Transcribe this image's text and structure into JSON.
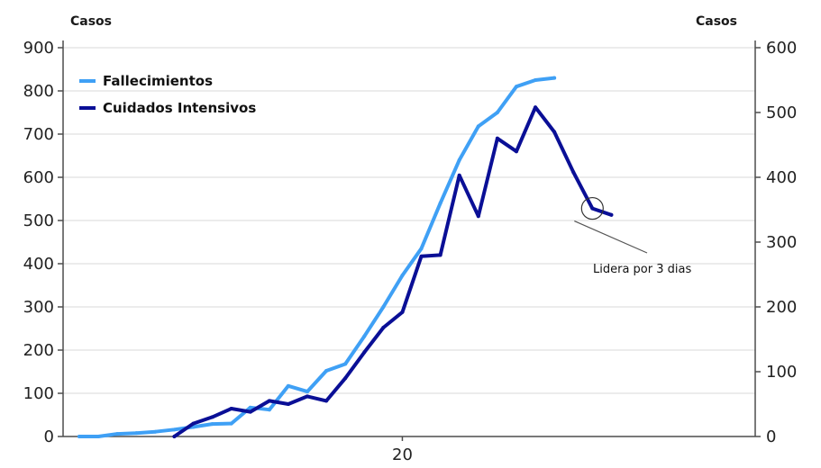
{
  "chart_data": {
    "type": "line",
    "x": [
      1,
      2,
      3,
      4,
      5,
      6,
      7,
      8,
      9,
      10,
      11,
      12,
      13,
      14,
      15,
      16,
      17,
      18,
      19,
      20,
      21,
      22,
      23,
      24,
      25,
      26,
      27,
      28,
      29,
      30,
      31,
      32,
      33,
      34,
      35,
      36
    ],
    "x_tick_labels": [
      {
        "x": 18,
        "label": "20"
      }
    ],
    "left_axis": {
      "title": "Casos",
      "ylim": [
        0,
        900
      ],
      "ticks": [
        0,
        100,
        200,
        300,
        400,
        500,
        600,
        700,
        800,
        900
      ]
    },
    "right_axis": {
      "title": "Casos",
      "ylim": [
        0,
        600
      ],
      "ticks": [
        0,
        100,
        200,
        300,
        400,
        500,
        600
      ]
    },
    "grid": true,
    "legend_position": "top-left",
    "series": [
      {
        "name": "Fallecimientos",
        "axis": "left",
        "color": "#3fa0f5",
        "values": [
          0,
          0,
          6,
          8,
          11,
          16,
          22,
          29,
          30,
          67,
          62,
          117,
          104,
          152,
          168,
          232,
          300,
          373,
          435,
          540,
          640,
          718,
          750,
          810,
          825,
          830,
          null,
          null,
          null,
          null,
          null,
          null,
          null,
          null,
          null,
          null
        ]
      },
      {
        "name": "Cuidados Intensivos",
        "axis": "right",
        "color": "#0a0f96",
        "values": [
          null,
          null,
          null,
          null,
          null,
          0,
          20,
          30,
          43,
          38,
          55,
          50,
          62,
          55,
          90,
          130,
          168,
          192,
          278,
          280,
          403,
          340,
          460,
          440,
          508,
          470,
          408,
          352,
          342,
          null,
          null,
          null,
          null,
          null,
          null,
          null
        ]
      }
    ],
    "annotation": {
      "text": "Lidera por 3 dias",
      "series": "Cuidados Intensivos",
      "x": 28
    }
  },
  "colors": {
    "grid": "#d9d9d9",
    "axis": "#4d4d4d",
    "annotation_line": "#555555"
  }
}
